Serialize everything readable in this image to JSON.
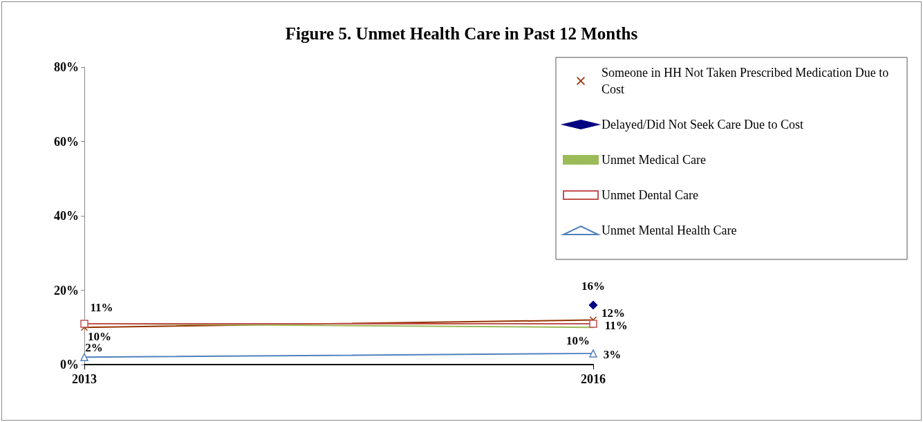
{
  "chart_data": {
    "type": "line",
    "title": "Figure 5. Unmet Health Care in Past 12 Months",
    "categories": [
      "2013",
      "2016"
    ],
    "series": [
      {
        "name": "Someone in HH Not Taken Prescribed Medication Due to Cost",
        "color": "#993300",
        "marker": "cross",
        "values": [
          10,
          12
        ],
        "value_labels": [
          "10%",
          "12%"
        ]
      },
      {
        "name": "Delayed/Did Not Seek Care Due to Cost",
        "color": "#000080",
        "marker": "diamond",
        "values": [
          null,
          16
        ],
        "value_labels": [
          null,
          "16%"
        ]
      },
      {
        "name": "Unmet Medical Care",
        "color": "#9bbb59",
        "marker": "none",
        "values": [
          11,
          10
        ],
        "value_labels": [
          null,
          "10%"
        ]
      },
      {
        "name": "Unmet Dental Care",
        "color": "#c0504d",
        "marker": "square",
        "values": [
          11,
          11
        ],
        "value_labels": [
          "11%",
          "11%"
        ]
      },
      {
        "name": "Unmet Mental Health Care",
        "color": "#4f81bd",
        "marker": "triangle",
        "values": [
          2,
          3
        ],
        "value_labels": [
          "2%",
          "3%"
        ]
      }
    ],
    "ylim": [
      0,
      80
    ],
    "yticks": [
      {
        "value": 0,
        "label": "0%"
      },
      {
        "value": 20,
        "label": "20%"
      },
      {
        "value": 40,
        "label": "40%"
      },
      {
        "value": 60,
        "label": "60%"
      },
      {
        "value": 80,
        "label": "80%"
      }
    ],
    "grid": false,
    "legend": "top right",
    "line_style": "solid"
  }
}
